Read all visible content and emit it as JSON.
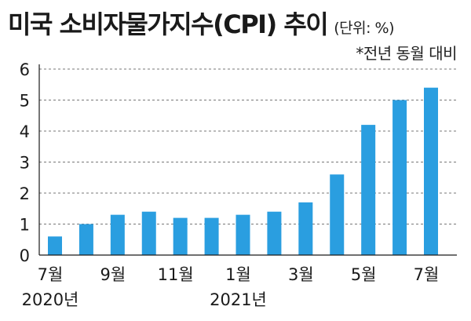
{
  "chart_data": {
    "type": "bar",
    "title": "미국 소비자물가지수(CPI) 추이",
    "unit_label": "(단위: %)",
    "note": "*전년 동월 대비",
    "categories": [
      "2020-07",
      "2020-08",
      "2020-09",
      "2020-10",
      "2020-11",
      "2020-12",
      "2021-01",
      "2021-02",
      "2021-03",
      "2021-04",
      "2021-05",
      "2021-06",
      "2021-07"
    ],
    "values": [
      0.6,
      1.0,
      1.3,
      1.4,
      1.2,
      1.2,
      1.3,
      1.4,
      1.7,
      2.6,
      4.2,
      5.0,
      5.4
    ],
    "ylim": [
      0,
      6
    ],
    "yticks": [
      "0",
      "1",
      "2",
      "3",
      "4",
      "5",
      "6"
    ],
    "xticks": [
      {
        "index": 0,
        "label": "7월"
      },
      {
        "index": 2,
        "label": "9월"
      },
      {
        "index": 4,
        "label": "11월"
      },
      {
        "index": 6,
        "label": "1월"
      },
      {
        "index": 8,
        "label": "3월"
      },
      {
        "index": 10,
        "label": "5월"
      },
      {
        "index": 12,
        "label": "7월"
      }
    ],
    "year_labels": [
      {
        "index": 0,
        "label": "2020년"
      },
      {
        "index": 6,
        "label": "2021년"
      }
    ],
    "grid": true,
    "colors": {
      "bar": "#2a9ee0",
      "grid": "#777777",
      "axis": "#1a1a1a"
    }
  }
}
